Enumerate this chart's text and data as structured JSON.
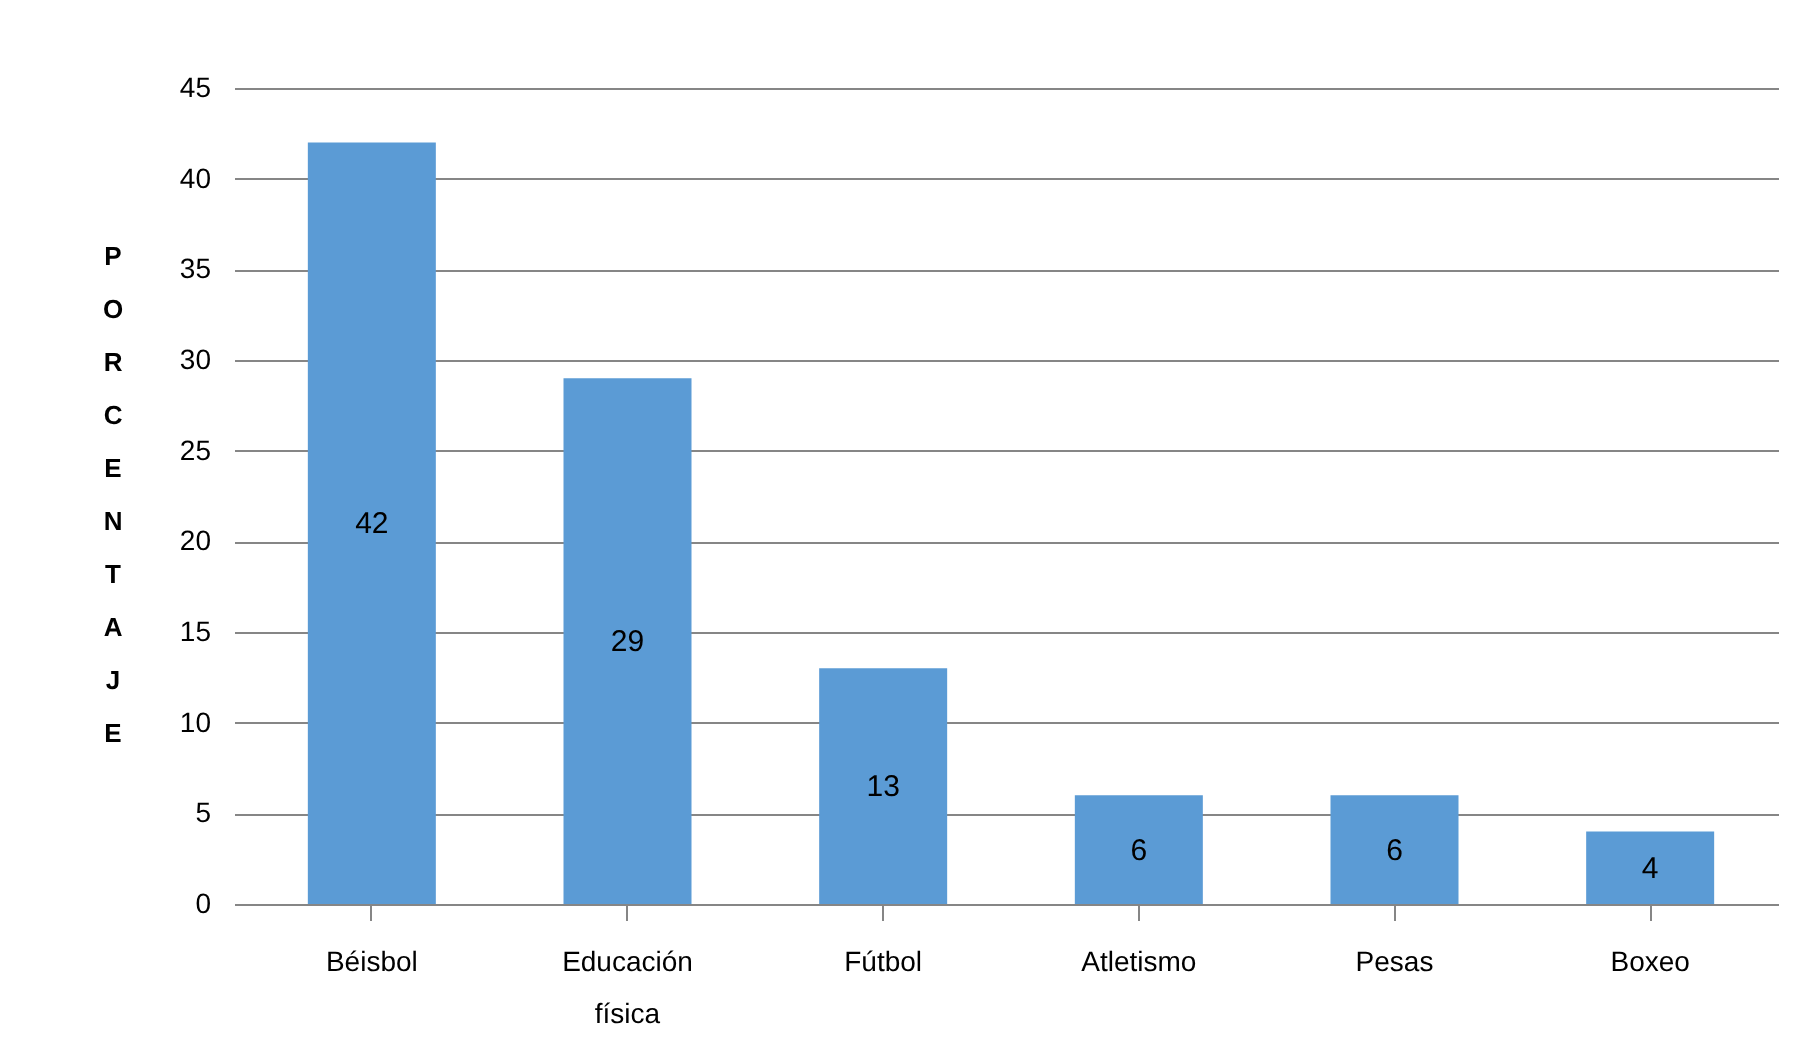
{
  "chart_data": {
    "type": "bar",
    "ylabel": "PORCENTAJE",
    "categories": [
      "Béisbol",
      "Educación física",
      "Fútbol",
      "Atletismo",
      "Pesas",
      "Boxeo"
    ],
    "values": [
      42,
      29,
      13,
      6,
      6,
      4
    ],
    "color": "#5b9bd5",
    "ylim": [
      0,
      45
    ],
    "yticks": [
      0,
      5,
      10,
      15,
      20,
      25,
      30,
      35,
      40,
      45
    ],
    "grid": "y",
    "data_labels": true
  }
}
